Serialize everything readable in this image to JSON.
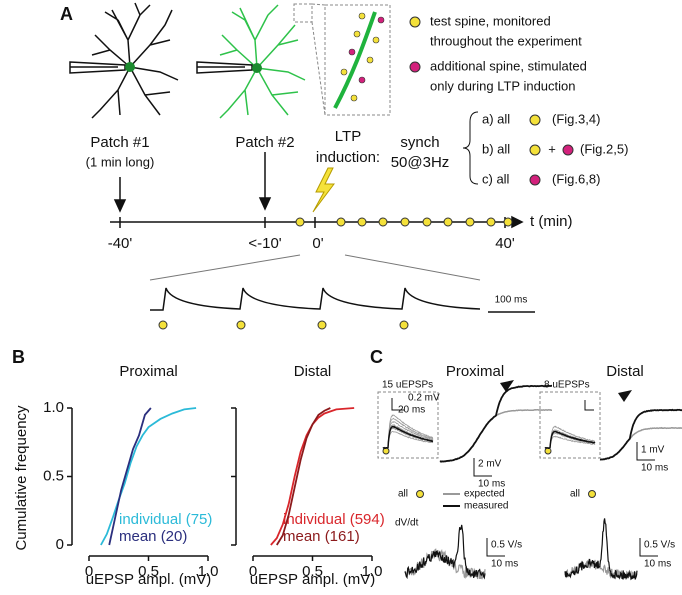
{
  "panel_a": {
    "label": "A",
    "legend": {
      "test": [
        "test spine, monitored",
        "throughout the experiment"
      ],
      "additional": [
        "additional spine, stimulated",
        "only during LTP induction"
      ]
    },
    "patch1": {
      "title": "Patch #1",
      "note": "(1 min long)"
    },
    "patch2": {
      "title": "Patch #2"
    },
    "ltp": [
      "LTP",
      "induction:"
    ],
    "synch": [
      "synch",
      "50@3Hz"
    ],
    "protocols": [
      [
        "a) all",
        "(Fig.3,4)"
      ],
      [
        "b) all",
        "+",
        "(Fig.2,5)"
      ],
      [
        "c) all",
        "(Fig.6,8)"
      ]
    ],
    "timeline": {
      "labels": [
        "-40'",
        "<-10'",
        "0'",
        "40'"
      ],
      "axis_label": "t (min)"
    },
    "scale": "100 ms"
  },
  "panel_b": {
    "label": "B"
  },
  "chart_data": [
    {
      "type": "line",
      "title": "Proximal",
      "xlabel": "uEPSP ampl. (mV)",
      "ylabel": "Cumulative frequency",
      "xlim": [
        0,
        1
      ],
      "ylim": [
        0,
        1
      ],
      "xticks": [
        0,
        0.5,
        {
          "value": 1,
          "label": "1.0"
        }
      ],
      "yticks": [
        0,
        0.5,
        {
          "value": 1,
          "label": "1.0"
        }
      ],
      "ytick_labels": true,
      "series": [
        {
          "name": "individual (75)",
          "color": "#2bbad8",
          "x": [
            0.1,
            0.15,
            0.2,
            0.25,
            0.3,
            0.35,
            0.4,
            0.45,
            0.5,
            0.6,
            0.7,
            0.8,
            0.9
          ],
          "values": [
            0,
            0.08,
            0.2,
            0.33,
            0.45,
            0.6,
            0.72,
            0.8,
            0.86,
            0.92,
            0.96,
            0.99,
            1
          ]
        },
        {
          "name": "mean (20)",
          "color": "#2b2f7e",
          "x": [
            0.17,
            0.22,
            0.27,
            0.32,
            0.37,
            0.42,
            0.47,
            0.52
          ],
          "values": [
            0,
            0.2,
            0.4,
            0.55,
            0.7,
            0.8,
            0.95,
            1
          ]
        }
      ]
    },
    {
      "type": "line",
      "title": "Distal",
      "xlabel": "uEPSP ampl. (mV)",
      "xlim": [
        0,
        1
      ],
      "ylim": [
        0,
        1
      ],
      "xticks": [
        0,
        0.5,
        {
          "value": 1,
          "label": "1.0"
        }
      ],
      "yticks": [
        0,
        0.5,
        1
      ],
      "ytick_labels": false,
      "series": [
        {
          "name": "individual (594)",
          "color": "#d9262b",
          "x": [
            0.15,
            0.2,
            0.25,
            0.3,
            0.35,
            0.4,
            0.45,
            0.5,
            0.55,
            0.6,
            0.7,
            0.85
          ],
          "values": [
            0,
            0.05,
            0.15,
            0.3,
            0.5,
            0.68,
            0.8,
            0.88,
            0.93,
            0.96,
            0.99,
            1
          ]
        },
        {
          "name": "mean (161)",
          "color": "#8c1a1c",
          "x": [
            0.2,
            0.25,
            0.3,
            0.35,
            0.4,
            0.45,
            0.5,
            0.55,
            0.6,
            0.65
          ],
          "values": [
            0,
            0.07,
            0.22,
            0.42,
            0.62,
            0.78,
            0.88,
            0.95,
            0.98,
            1
          ]
        }
      ]
    }
  ],
  "panel_c": {
    "label": "C",
    "deriv_label": "dV/dt",
    "legend": [
      "expected",
      "measured"
    ],
    "panels": [
      {
        "title": "Proximal",
        "inset": "15 uEPSPs",
        "inset_scale": [
          "0.2 mV",
          "20 ms"
        ],
        "scale": [
          "2 mV",
          "10 ms"
        ],
        "stim": "all",
        "deriv_scale": [
          "0.5 V/s",
          "10 ms"
        ]
      },
      {
        "title": "Distal",
        "inset": "8 uEPSPs",
        "scale": [
          "1 mV",
          "10 ms"
        ],
        "stim": "all",
        "deriv_scale": [
          "0.5 V/s",
          "10 ms"
        ]
      }
    ]
  }
}
